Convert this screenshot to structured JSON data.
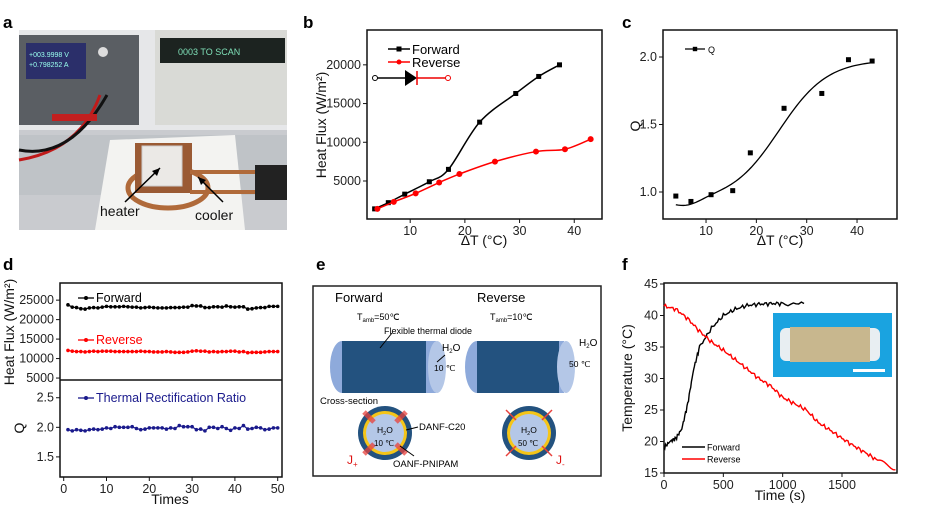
{
  "panel_labels": {
    "a": "a",
    "b": "b",
    "c": "c",
    "d": "d",
    "e": "e",
    "f": "f"
  },
  "panel_a": {
    "type": "photo",
    "labels": {
      "heater": "heater",
      "cooler": "cooler"
    },
    "instrument_display_1": "+003.9998 V",
    "instrument_display_2": "+0.798252 A",
    "instrument_display_3": "0003  TO SCAN"
  },
  "panel_e": {
    "forward": "Forward",
    "reverse": "Reverse",
    "tamb_forward": "T",
    "tamb_sub": "amb",
    "tamb_forward_value": "=50℃",
    "tamb_reverse_value": "=10℃",
    "diode_label": "Flexible thermal diode",
    "h2o": "H",
    "h2o_sub": "2",
    "h2o_o": "O",
    "forward_temp": "10 ℃",
    "reverse_temp": "50 ℃",
    "cross_section": "Cross-section",
    "danf": "DANF-C20",
    "oanf": "OANF-PNIPAM",
    "j_plus": "J",
    "j_plus_sub": "+",
    "j_minus": "J",
    "j_minus_sub": "-",
    "colors": {
      "tube": "#23527f",
      "end": "#8eaadb",
      "core": "#b4c7e7",
      "ring": "#f5c518",
      "arrow": "#e8413c"
    }
  },
  "chart_data": [
    {
      "panel": "b",
      "type": "line",
      "xlabel": "ΔT (°C)",
      "ylabel": "Heat Flux (W/m²)",
      "xlim": [
        0,
        45
      ],
      "ylim": [
        0,
        24500
      ],
      "xticks": [
        10,
        20,
        30,
        40
      ],
      "yticks": [
        5000,
        10000,
        15000,
        20000
      ],
      "legend": "top-left",
      "series": [
        {
          "name": "Forward",
          "color": "#000000",
          "marker": "square",
          "x": [
            3.5,
            6,
            9,
            13.5,
            17,
            22.7,
            29.3,
            33.5,
            37.3
          ],
          "y": [
            1400,
            2200,
            3300,
            4900,
            6500,
            12600,
            16300,
            18500,
            20000
          ]
        },
        {
          "name": "Reverse",
          "color": "#ff0000",
          "marker": "circle",
          "x": [
            4,
            7,
            11,
            15.3,
            19,
            25.5,
            33,
            38.3,
            43
          ],
          "y": [
            1400,
            2300,
            3400,
            4800,
            5900,
            7500,
            8800,
            9100,
            10400
          ]
        }
      ]
    },
    {
      "panel": "c",
      "type": "scatter",
      "xlabel": "ΔT (°C)",
      "ylabel": "Q",
      "xlim": [
        0,
        48
      ],
      "ylim": [
        0.8,
        2.2
      ],
      "xticks": [
        10,
        20,
        30,
        40
      ],
      "yticks": [
        1.0,
        1.5,
        2.0
      ],
      "legend": "top-left",
      "series": [
        {
          "name": "Q",
          "color": "#000000",
          "marker": "square",
          "fit": "sigmoid",
          "x": [
            4,
            7,
            11,
            15.3,
            18.8,
            25.5,
            33,
            38.3,
            43
          ],
          "y": [
            0.97,
            0.93,
            0.98,
            1.01,
            1.29,
            1.62,
            1.73,
            1.98,
            1.97
          ]
        }
      ]
    },
    {
      "panel": "d",
      "type": "line",
      "xlabel": "Times",
      "ylabel_top": "Heat Flux (W/m²)",
      "ylabel_bottom": "Q",
      "xlim": [
        -1,
        51
      ],
      "ylim_top": [
        4500,
        29400
      ],
      "ylim_bottom": [
        1.16,
        2.8
      ],
      "xticks": [
        0,
        10,
        20,
        30,
        40,
        50
      ],
      "yticks_top": [
        5000,
        10000,
        15000,
        20000,
        25000
      ],
      "yticks_bottom": [
        1.5,
        2.0,
        2.5
      ],
      "series": [
        {
          "name": "Forward",
          "color": "#000000",
          "axis": "top",
          "y": [
            23800,
            23200,
            23100,
            22800,
            22700,
            23000,
            23100,
            23000,
            23200,
            23400,
            23300,
            23300,
            23300,
            23400,
            23300,
            23200,
            23200,
            23000,
            23100,
            23200,
            23100,
            23000,
            23000,
            23000,
            23100,
            23100,
            23100,
            23200,
            23200,
            23600,
            23500,
            23500,
            23100,
            23100,
            23300,
            23300,
            23200,
            23500,
            23300,
            23200,
            23300,
            23300,
            22700,
            22800,
            23000,
            23100,
            23100,
            23400,
            23400,
            23400
          ]
        },
        {
          "name": "Reverse",
          "color": "#ff0000",
          "axis": "top",
          "y": [
            12100,
            11900,
            11800,
            11800,
            11700,
            11800,
            11900,
            11800,
            11900,
            11900,
            11900,
            11800,
            11800,
            11800,
            11800,
            11800,
            11800,
            11900,
            11800,
            11800,
            11700,
            11700,
            11700,
            11800,
            11700,
            11600,
            11600,
            11600,
            11700,
            11900,
            12000,
            11900,
            11900,
            11700,
            11800,
            11700,
            11800,
            11800,
            11900,
            11900,
            11700,
            11800,
            11500,
            11600,
            11600,
            11600,
            11700,
            11800,
            11800,
            11800
          ]
        },
        {
          "name": "Thermal Rectification Ratio",
          "color": "#1a1a8c",
          "axis": "bottom",
          "y": [
            1.96,
            1.94,
            1.96,
            1.95,
            1.94,
            1.96,
            1.97,
            1.96,
            1.97,
            1.99,
            1.98,
            2.01,
            2.0,
            2.0,
            2.0,
            2.01,
            1.98,
            1.96,
            1.97,
            1.99,
            1.99,
            1.99,
            1.99,
            1.97,
            1.99,
            1.98,
            2.03,
            2.01,
            2.01,
            2.01,
            1.96,
            1.97,
            1.94,
            2.0,
            2.0,
            1.98,
            2.01,
            1.98,
            1.95,
            1.99,
            1.98,
            2.03,
            1.97,
            1.98,
            2.0,
            1.99,
            1.96,
            1.97,
            1.99,
            1.99
          ]
        }
      ]
    },
    {
      "panel": "f",
      "type": "line",
      "xlabel": "Time (s)",
      "ylabel": "Temperature (°C)",
      "xlim": [
        0,
        1960
      ],
      "ylim": [
        15,
        45
      ],
      "xticks": [
        0,
        500,
        1000,
        1500
      ],
      "yticks": [
        15,
        20,
        25,
        30,
        35,
        40,
        45
      ],
      "legend": "bottom-left",
      "inset": "photo",
      "series": [
        {
          "name": "Forward",
          "color": "#000000",
          "x": [
            0,
            50,
            100,
            150,
            200,
            250,
            300,
            400,
            500,
            600,
            700,
            800,
            900,
            1000,
            1180
          ],
          "y": [
            19,
            20,
            20.5,
            22,
            26,
            31.5,
            35,
            38,
            40,
            41,
            41.6,
            41.8,
            41.9,
            41.9,
            41.9
          ]
        },
        {
          "name": "Reverse",
          "color": "#ff0000",
          "x": [
            0,
            100,
            200,
            300,
            400,
            500,
            600,
            700,
            800,
            900,
            1000,
            1100,
            1200,
            1300,
            1400,
            1500,
            1600,
            1700,
            1800,
            1950
          ],
          "y": [
            41.5,
            41,
            39.5,
            37.5,
            35.8,
            34.5,
            33,
            31.5,
            30,
            28.8,
            27,
            26,
            25,
            23,
            21.8,
            20.5,
            19.3,
            18.2,
            17,
            15.5
          ]
        }
      ]
    }
  ]
}
